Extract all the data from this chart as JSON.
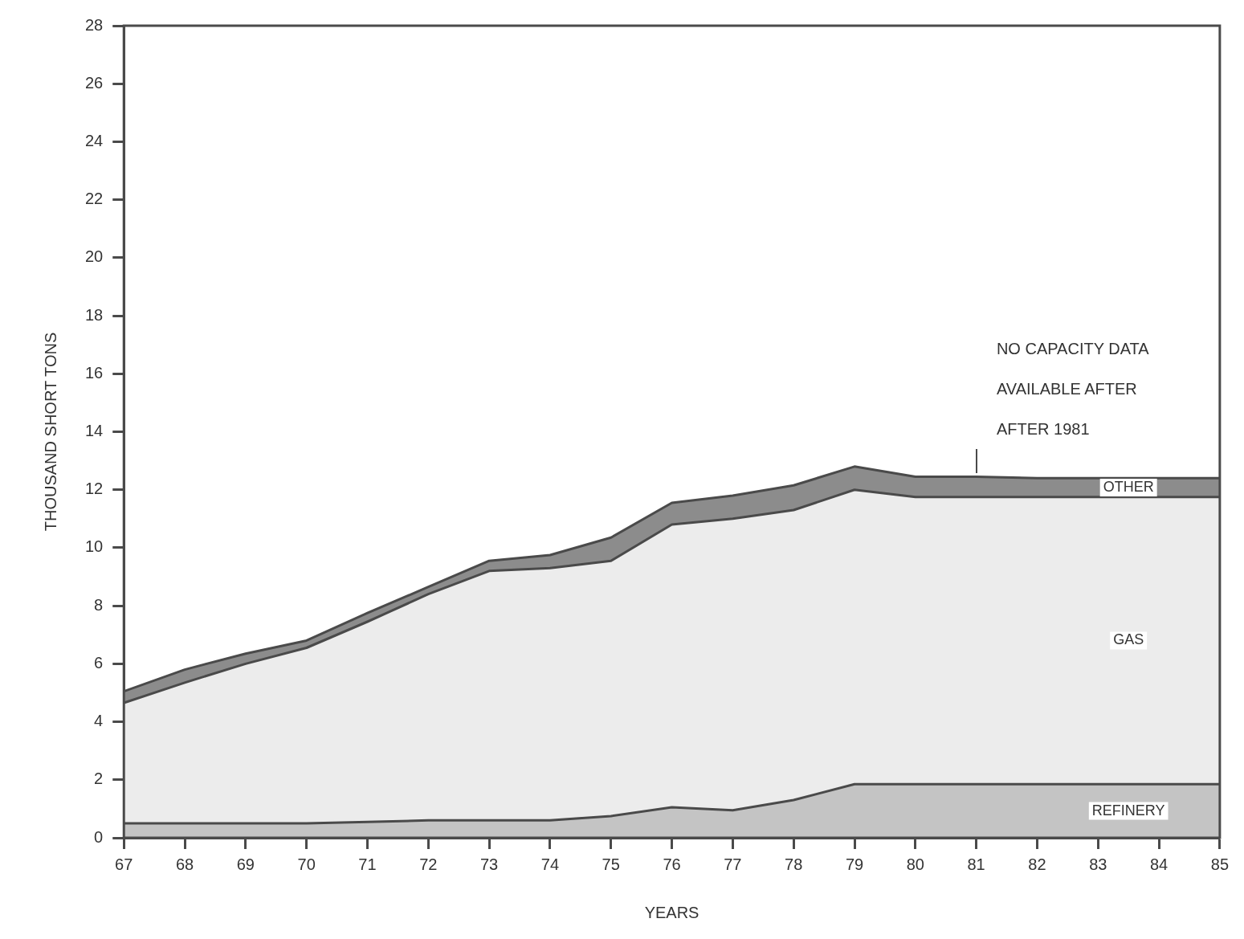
{
  "chart_data": {
    "type": "area",
    "xlabel": "YEARS",
    "ylabel": "THOUSAND SHORT TONS",
    "x": [
      67,
      68,
      69,
      70,
      71,
      72,
      73,
      74,
      75,
      76,
      77,
      78,
      79,
      80,
      81,
      82,
      83,
      84,
      85
    ],
    "stacked": true,
    "series": [
      {
        "name": "REFINERY",
        "color": "#c4c4c4",
        "values": [
          0.5,
          0.5,
          0.5,
          0.5,
          0.55,
          0.6,
          0.6,
          0.6,
          0.75,
          1.05,
          0.95,
          1.3,
          1.85,
          1.85,
          1.85,
          1.85,
          1.85,
          1.85,
          1.85
        ]
      },
      {
        "name": "GAS",
        "color": "#ececec",
        "values": [
          4.15,
          4.85,
          5.5,
          6.05,
          6.9,
          7.8,
          8.6,
          8.7,
          8.8,
          9.75,
          10.05,
          10.0,
          10.15,
          9.9,
          9.9,
          9.9,
          9.9,
          9.9,
          9.9
        ]
      },
      {
        "name": "OTHER",
        "color": "#8c8c8c",
        "values": [
          0.4,
          0.45,
          0.35,
          0.25,
          0.3,
          0.25,
          0.35,
          0.45,
          0.8,
          0.75,
          0.8,
          0.85,
          0.8,
          0.7,
          0.7,
          0.65,
          0.65,
          0.65,
          0.65
        ]
      }
    ],
    "xlim": [
      67,
      85
    ],
    "xticks": [
      67,
      68,
      69,
      70,
      71,
      72,
      73,
      74,
      75,
      76,
      77,
      78,
      79,
      80,
      81,
      82,
      83,
      84,
      85
    ],
    "ylim": [
      0,
      28
    ],
    "yticks": [
      0,
      2,
      4,
      6,
      8,
      10,
      12,
      14,
      16,
      18,
      20,
      22,
      24,
      26,
      28
    ],
    "grid": false,
    "legend": false,
    "annotations": [
      "NO CAPACITY DATA\nAVAILABLE AFTER\nAFTER 1981"
    ]
  }
}
